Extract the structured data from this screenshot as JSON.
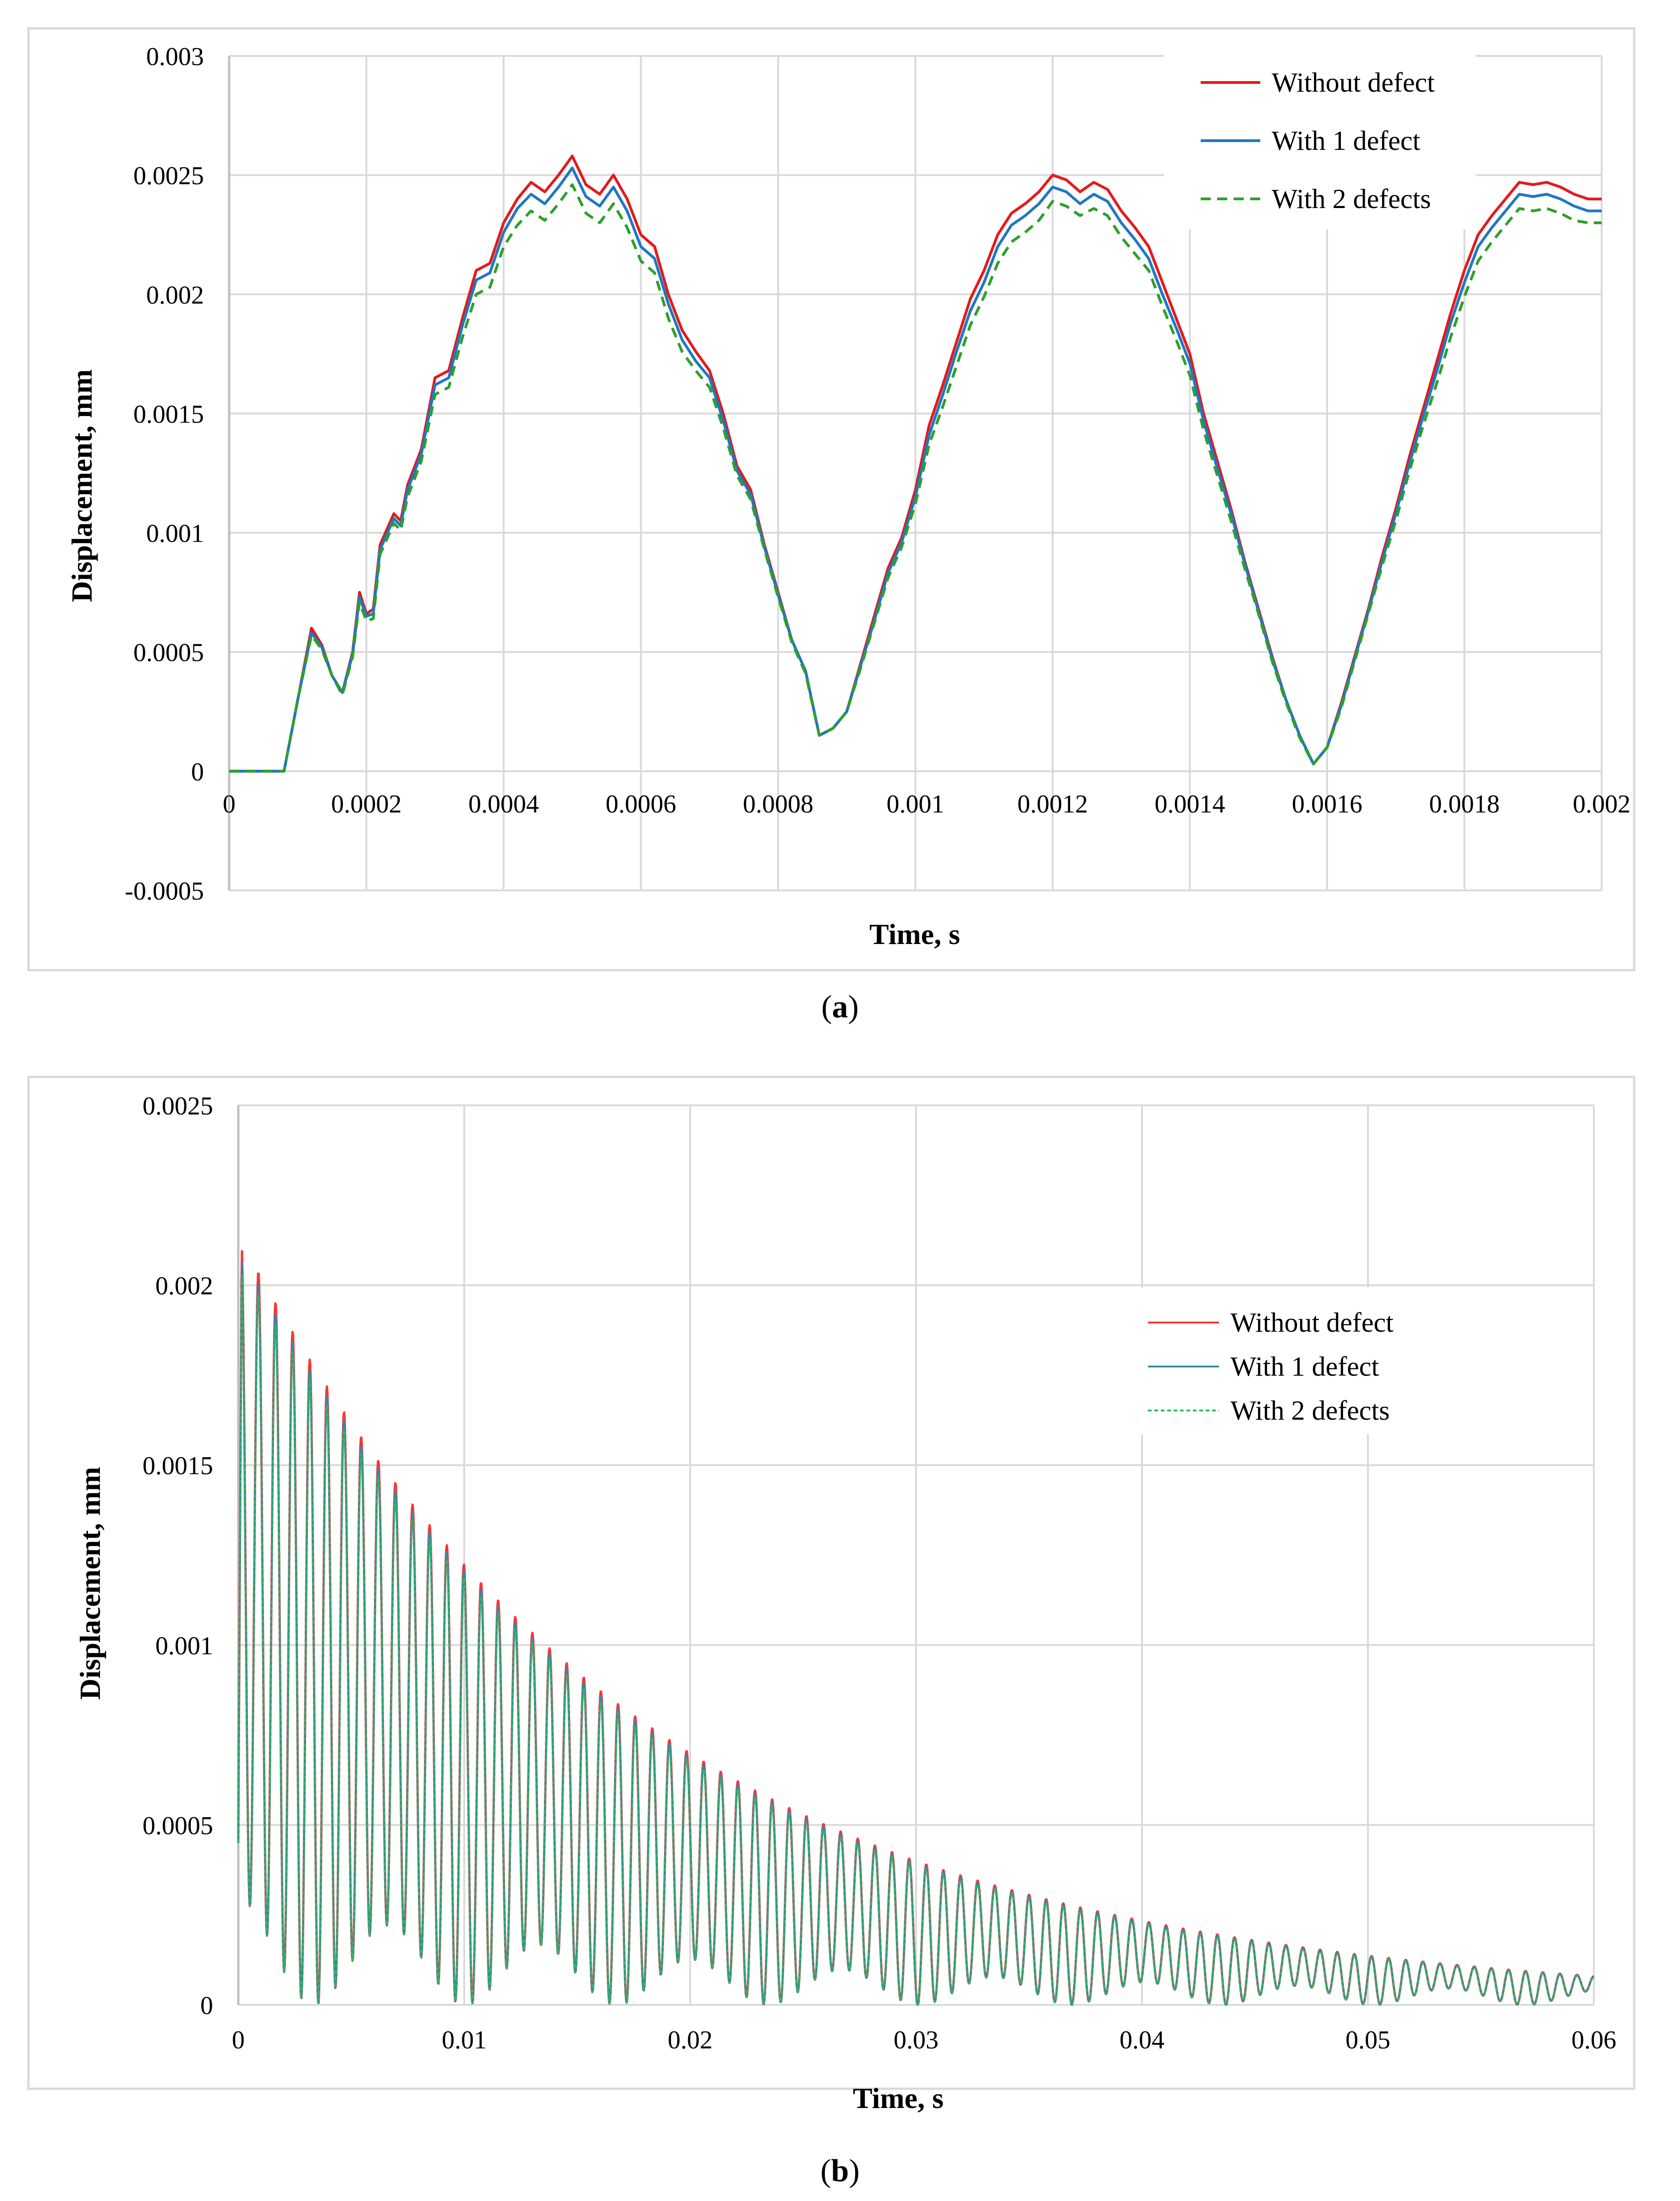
{
  "chart_data": [
    {
      "id": "a",
      "type": "line",
      "caption_letter": "a",
      "xlabel": "Time, s",
      "ylabel": "Displacement, mm",
      "xlim": [
        0,
        0.002
      ],
      "ylim": [
        -0.0005,
        0.003
      ],
      "x_ticks": [
        0,
        0.0002,
        0.0004,
        0.0006,
        0.0008,
        0.001,
        0.0012,
        0.0014,
        0.0016,
        0.0018,
        0.002
      ],
      "x_tick_labels": [
        "0",
        "0.0002",
        "0.0004",
        "0.0006",
        "0.0008",
        "0.001",
        "0.0012",
        "0.0014",
        "0.0016",
        "0.0018",
        "0.002"
      ],
      "y_ticks": [
        -0.0005,
        0,
        0.0005,
        0.001,
        0.0015,
        0.002,
        0.0025,
        0.003
      ],
      "y_tick_labels": [
        "-0.0005",
        "0",
        "0.0005",
        "0.001",
        "0.0015",
        "0.002",
        "0.0025",
        "0.003"
      ],
      "grid": true,
      "legend_position": "top-right",
      "series": [
        {
          "name": "Without defect",
          "color": "#e41a1c",
          "dash": "solid",
          "x": [
            0,
            8e-05,
            0.0001,
            0.00012,
            0.000135,
            0.00015,
            0.000165,
            0.00018,
            0.00019,
            0.0002,
            0.00021,
            0.00022,
            0.00024,
            0.00025,
            0.00026,
            0.00028,
            0.0003,
            0.00032,
            0.00034,
            0.00036,
            0.00038,
            0.0004,
            0.00042,
            0.00044,
            0.00046,
            0.00048,
            0.0005,
            0.00052,
            0.00054,
            0.00056,
            0.00058,
            0.0006,
            0.00062,
            0.00064,
            0.00066,
            0.00068,
            0.0007,
            0.00072,
            0.00074,
            0.00076,
            0.00078,
            0.0008,
            0.00082,
            0.00084,
            0.00086,
            0.00088,
            0.0009,
            0.00092,
            0.00094,
            0.00096,
            0.00098,
            0.001,
            0.00102,
            0.00104,
            0.00106,
            0.00108,
            0.0011,
            0.00112,
            0.00114,
            0.00116,
            0.00118,
            0.0012,
            0.00122,
            0.00124,
            0.00126,
            0.00128,
            0.0013,
            0.00132,
            0.00134,
            0.00136,
            0.00138,
            0.0014,
            0.00142,
            0.00144,
            0.00146,
            0.00148,
            0.0015,
            0.00152,
            0.00154,
            0.00156,
            0.00158,
            0.0016,
            0.00162,
            0.00164,
            0.00166,
            0.00168,
            0.0017,
            0.00172,
            0.00174,
            0.00176,
            0.00178,
            0.0018,
            0.00182,
            0.00184,
            0.00186,
            0.00188,
            0.0019,
            0.00192,
            0.00194,
            0.00196,
            0.00198,
            0.002
          ],
          "y": [
            0,
            0,
            0.0003,
            0.0006,
            0.00053,
            0.0004,
            0.00033,
            0.0005,
            0.00075,
            0.00066,
            0.00068,
            0.00095,
            0.00108,
            0.00105,
            0.0012,
            0.00135,
            0.00165,
            0.00168,
            0.0019,
            0.0021,
            0.00213,
            0.0023,
            0.0024,
            0.00247,
            0.00243,
            0.0025,
            0.00258,
            0.00246,
            0.00242,
            0.0025,
            0.0024,
            0.00225,
            0.0022,
            0.002,
            0.00185,
            0.00176,
            0.00168,
            0.0015,
            0.00128,
            0.00118,
            0.00095,
            0.00075,
            0.00055,
            0.00042,
            0.00015,
            0.00018,
            0.00025,
            0.00045,
            0.00065,
            0.00085,
            0.00098,
            0.00118,
            0.00145,
            0.00162,
            0.0018,
            0.00198,
            0.0021,
            0.00225,
            0.00234,
            0.00238,
            0.00243,
            0.0025,
            0.00248,
            0.00243,
            0.00247,
            0.00244,
            0.00235,
            0.00228,
            0.0022,
            0.00205,
            0.0019,
            0.00175,
            0.0015,
            0.0013,
            0.0011,
            0.00088,
            0.00068,
            0.00048,
            0.0003,
            0.00015,
            3e-05,
            0.0001,
            0.00028,
            0.00048,
            0.00068,
            0.0009,
            0.0011,
            0.00132,
            0.00152,
            0.00172,
            0.00192,
            0.0021,
            0.00225,
            0.00233,
            0.0024,
            0.00247,
            0.00246,
            0.00247,
            0.00245,
            0.00242,
            0.0024,
            0.0024
          ]
        },
        {
          "name": "With 1 defect",
          "color": "#1f77c4",
          "dash": "solid",
          "x": [
            0,
            8e-05,
            0.0001,
            0.00012,
            0.000135,
            0.00015,
            0.000165,
            0.00018,
            0.00019,
            0.0002,
            0.00021,
            0.00022,
            0.00024,
            0.00025,
            0.00026,
            0.00028,
            0.0003,
            0.00032,
            0.00034,
            0.00036,
            0.00038,
            0.0004,
            0.00042,
            0.00044,
            0.00046,
            0.00048,
            0.0005,
            0.00052,
            0.00054,
            0.00056,
            0.00058,
            0.0006,
            0.00062,
            0.00064,
            0.00066,
            0.00068,
            0.0007,
            0.00072,
            0.00074,
            0.00076,
            0.00078,
            0.0008,
            0.00082,
            0.00084,
            0.00086,
            0.00088,
            0.0009,
            0.00092,
            0.00094,
            0.00096,
            0.00098,
            0.001,
            0.00102,
            0.00104,
            0.00106,
            0.00108,
            0.0011,
            0.00112,
            0.00114,
            0.00116,
            0.00118,
            0.0012,
            0.00122,
            0.00124,
            0.00126,
            0.00128,
            0.0013,
            0.00132,
            0.00134,
            0.00136,
            0.00138,
            0.0014,
            0.00142,
            0.00144,
            0.00146,
            0.00148,
            0.0015,
            0.00152,
            0.00154,
            0.00156,
            0.00158,
            0.0016,
            0.00162,
            0.00164,
            0.00166,
            0.00168,
            0.0017,
            0.00172,
            0.00174,
            0.00176,
            0.00178,
            0.0018,
            0.00182,
            0.00184,
            0.00186,
            0.00188,
            0.0019,
            0.00192,
            0.00194,
            0.00196,
            0.00198,
            0.002
          ],
          "y": [
            0,
            0,
            0.0003,
            0.00058,
            0.00052,
            0.0004,
            0.00033,
            0.00049,
            0.00073,
            0.00065,
            0.00066,
            0.00093,
            0.00106,
            0.00103,
            0.00118,
            0.00133,
            0.00162,
            0.00165,
            0.00187,
            0.00206,
            0.00209,
            0.00226,
            0.00236,
            0.00242,
            0.00238,
            0.00245,
            0.00253,
            0.00241,
            0.00237,
            0.00245,
            0.00235,
            0.0022,
            0.00215,
            0.00196,
            0.00181,
            0.00172,
            0.00165,
            0.00147,
            0.00126,
            0.00116,
            0.00094,
            0.00074,
            0.00055,
            0.00042,
            0.00015,
            0.00018,
            0.00025,
            0.00044,
            0.00063,
            0.00083,
            0.00096,
            0.00115,
            0.00141,
            0.00158,
            0.00176,
            0.00193,
            0.00205,
            0.0022,
            0.00229,
            0.00233,
            0.00238,
            0.00245,
            0.00243,
            0.00238,
            0.00242,
            0.00239,
            0.0023,
            0.00223,
            0.00215,
            0.002,
            0.00186,
            0.00171,
            0.00147,
            0.00127,
            0.00108,
            0.00087,
            0.00067,
            0.00047,
            0.0003,
            0.00015,
            3e-05,
            0.0001,
            0.00027,
            0.00047,
            0.00067,
            0.00088,
            0.00108,
            0.00129,
            0.00149,
            0.00168,
            0.00188,
            0.00205,
            0.0022,
            0.00228,
            0.00235,
            0.00242,
            0.00241,
            0.00242,
            0.0024,
            0.00237,
            0.00235,
            0.00235
          ]
        },
        {
          "name": "With 2 defects",
          "color": "#2ca02c",
          "dash": "dashed",
          "x": [
            0,
            8e-05,
            0.0001,
            0.00012,
            0.000135,
            0.00015,
            0.000165,
            0.00018,
            0.00019,
            0.0002,
            0.00021,
            0.00022,
            0.00024,
            0.00025,
            0.00026,
            0.00028,
            0.0003,
            0.00032,
            0.00034,
            0.00036,
            0.00038,
            0.0004,
            0.00042,
            0.00044,
            0.00046,
            0.00048,
            0.0005,
            0.00052,
            0.00054,
            0.00056,
            0.00058,
            0.0006,
            0.00062,
            0.00064,
            0.00066,
            0.00068,
            0.0007,
            0.00072,
            0.00074,
            0.00076,
            0.00078,
            0.0008,
            0.00082,
            0.00084,
            0.00086,
            0.00088,
            0.0009,
            0.00092,
            0.00094,
            0.00096,
            0.00098,
            0.001,
            0.00102,
            0.00104,
            0.00106,
            0.00108,
            0.0011,
            0.00112,
            0.00114,
            0.00116,
            0.00118,
            0.0012,
            0.00122,
            0.00124,
            0.00126,
            0.00128,
            0.0013,
            0.00132,
            0.00134,
            0.00136,
            0.00138,
            0.0014,
            0.00142,
            0.00144,
            0.00146,
            0.00148,
            0.0015,
            0.00152,
            0.00154,
            0.00156,
            0.00158,
            0.0016,
            0.00162,
            0.00164,
            0.00166,
            0.00168,
            0.0017,
            0.00172,
            0.00174,
            0.00176,
            0.00178,
            0.0018,
            0.00182,
            0.00184,
            0.00186,
            0.00188,
            0.0019,
            0.00192,
            0.00194,
            0.00196,
            0.00198,
            0.002
          ],
          "y": [
            0,
            0,
            0.0003,
            0.00057,
            0.00051,
            0.0004,
            0.00032,
            0.00048,
            0.00071,
            0.00063,
            0.00064,
            0.00091,
            0.00104,
            0.00101,
            0.00115,
            0.0013,
            0.00158,
            0.00161,
            0.00182,
            0.002,
            0.00203,
            0.0022,
            0.00229,
            0.00235,
            0.00231,
            0.00238,
            0.00246,
            0.00234,
            0.0023,
            0.00238,
            0.00228,
            0.00214,
            0.00209,
            0.0019,
            0.00176,
            0.00168,
            0.00161,
            0.00144,
            0.00124,
            0.00114,
            0.00093,
            0.00073,
            0.00054,
            0.00041,
            0.00015,
            0.00018,
            0.00025,
            0.00043,
            0.00062,
            0.00081,
            0.00094,
            0.00112,
            0.00137,
            0.00153,
            0.0017,
            0.00187,
            0.00199,
            0.00213,
            0.00222,
            0.00226,
            0.00231,
            0.00239,
            0.00237,
            0.00233,
            0.00236,
            0.00233,
            0.00224,
            0.00217,
            0.0021,
            0.00195,
            0.00181,
            0.00166,
            0.00143,
            0.00124,
            0.00105,
            0.00085,
            0.00066,
            0.00046,
            0.00029,
            0.00014,
            3e-05,
            0.0001,
            0.00026,
            0.00046,
            0.00066,
            0.00086,
            0.00105,
            0.00126,
            0.00145,
            0.00163,
            0.00182,
            0.00199,
            0.00214,
            0.00222,
            0.00229,
            0.00236,
            0.00235,
            0.00236,
            0.00234,
            0.00231,
            0.0023,
            0.0023
          ]
        }
      ]
    },
    {
      "id": "b",
      "type": "line",
      "caption_letter": "b",
      "xlabel": "Time, s",
      "ylabel": "Displacement, mm",
      "xlim": [
        0,
        0.06
      ],
      "ylim": [
        0,
        0.0025
      ],
      "x_ticks": [
        0,
        0.01,
        0.02,
        0.03,
        0.04,
        0.05,
        0.06
      ],
      "x_tick_labels": [
        "0",
        "0.01",
        "0.02",
        "0.03",
        "0.04",
        "0.05",
        "0.06"
      ],
      "y_ticks": [
        0,
        0.0005,
        0.001,
        0.0015,
        0.002,
        0.0025
      ],
      "y_tick_labels": [
        "0",
        "0.0005",
        "0.001",
        "0.0015",
        "0.002",
        "0.0025"
      ],
      "grid": true,
      "legend_position": "center-right",
      "signal": {
        "description": "damped oscillation with beating",
        "period_s": 0.000758,
        "initial_peak_mm": 0.00214,
        "peak_at_0_03_mm": 0.0004,
        "peak_at_0_06_mm": 8e-05,
        "initial_trough_mm": 0.0003,
        "trough_at_0_06_mm": 3e-05,
        "beat_period_s": 0.0067
      },
      "series": [
        {
          "name": "Without defect",
          "color": "#ff3333",
          "dash": "solid",
          "peak_scale": 1.0
        },
        {
          "name": "With 1 defect",
          "color": "#3a86a8",
          "dash": "solid",
          "peak_scale": 0.985
        },
        {
          "name": "With 2 defects",
          "color": "#2eb85c",
          "dash": "dotted",
          "peak_scale": 0.97
        }
      ]
    }
  ]
}
